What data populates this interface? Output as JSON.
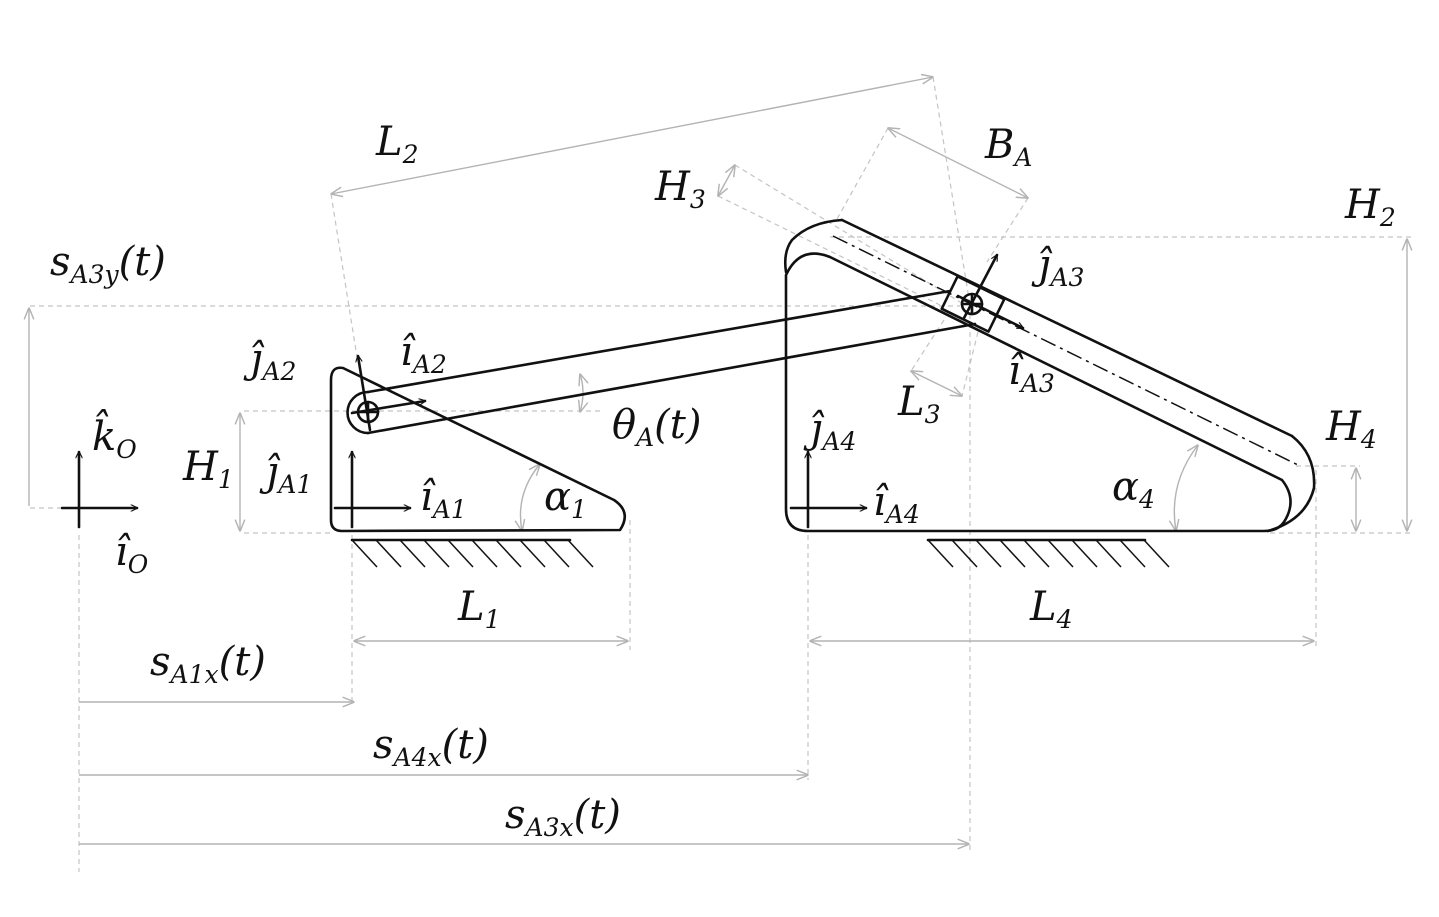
{
  "labels": {
    "L1": {
      "base": "L",
      "sub": "1"
    },
    "L2": {
      "base": "L",
      "sub": "2"
    },
    "L3": {
      "base": "L",
      "sub": "3"
    },
    "L4": {
      "base": "L",
      "sub": "4"
    },
    "H1": {
      "base": "H",
      "sub": "1"
    },
    "H2": {
      "base": "H",
      "sub": "2"
    },
    "H3": {
      "base": "H",
      "sub": "3"
    },
    "H4": {
      "base": "H",
      "sub": "4"
    },
    "BA": {
      "base": "B",
      "sub": "A"
    },
    "alpha1": {
      "base": "α",
      "sub": "1"
    },
    "alpha4": {
      "base": "α",
      "sub": "4"
    },
    "thetaA": {
      "base": "θ",
      "sub": "A",
      "tail": "(t)"
    },
    "kO": {
      "base": "k̂",
      "sub": "O"
    },
    "iO": {
      "base": "î",
      "sub": "O"
    },
    "iA1": {
      "base": "î",
      "sub": "A1"
    },
    "jA1": {
      "base": "ĵ",
      "sub": "A1"
    },
    "iA2": {
      "base": "î",
      "sub": "A2"
    },
    "jA2": {
      "base": "ĵ",
      "sub": "A2"
    },
    "iA3": {
      "base": "î",
      "sub": "A3"
    },
    "jA3": {
      "base": "ĵ",
      "sub": "A3"
    },
    "iA4": {
      "base": "î",
      "sub": "A4"
    },
    "jA4": {
      "base": "ĵ",
      "sub": "A4"
    },
    "sA1x": {
      "base": "s",
      "sub": "A1x",
      "tail": "(t)"
    },
    "sA3x": {
      "base": "s",
      "sub": "A3x",
      "tail": "(t)"
    },
    "sA3y": {
      "base": "s",
      "sub": "A3y",
      "tail": "(t)"
    },
    "sA4x": {
      "base": "s",
      "sub": "A4x",
      "tail": "(t)"
    }
  }
}
